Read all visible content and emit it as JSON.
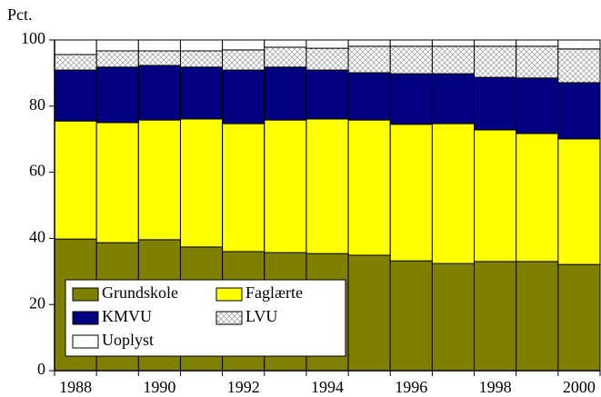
{
  "chart_data": {
    "type": "stacked_bar",
    "y_label": "Pct.",
    "categories": [
      "1988",
      null,
      "1990",
      null,
      "1992",
      null,
      "1994",
      null,
      "1996",
      null,
      "1998",
      null,
      "2000"
    ],
    "series": [
      {
        "name": "Grundskole",
        "color": "#7f7f00",
        "values": [
          39.8,
          38.7,
          39.6,
          37.4,
          36.0,
          35.7,
          35.4,
          34.9,
          33.2,
          32.4,
          33.0,
          33.0,
          32.1
        ]
      },
      {
        "name": "Faglærte",
        "color": "#ffff00",
        "values": [
          35.7,
          36.3,
          36.2,
          38.7,
          38.7,
          40.1,
          40.7,
          40.9,
          41.3,
          42.3,
          39.8,
          38.7,
          38.0
        ]
      },
      {
        "name": "KMVU",
        "color": "#000080",
        "values": [
          15.4,
          16.8,
          16.5,
          15.7,
          16.2,
          16.0,
          14.8,
          14.3,
          15.3,
          15.1,
          15.9,
          16.8,
          17.0
        ]
      },
      {
        "name": "LVU",
        "color": "#ffffff",
        "hatch": true,
        "values": [
          4.7,
          4.9,
          4.4,
          4.9,
          6.1,
          6.0,
          6.6,
          8.0,
          8.3,
          8.3,
          9.4,
          9.6,
          10.2
        ]
      },
      {
        "name": "Uoplyst",
        "color": "#ffffff",
        "values": [
          4.4,
          3.3,
          3.3,
          3.3,
          3.0,
          2.2,
          2.5,
          1.9,
          1.9,
          1.9,
          1.9,
          1.9,
          2.7
        ]
      }
    ],
    "ylim": [
      0,
      100
    ],
    "yticks": [
      0,
      20,
      40,
      60,
      80,
      100
    ],
    "legend": "lower left"
  }
}
